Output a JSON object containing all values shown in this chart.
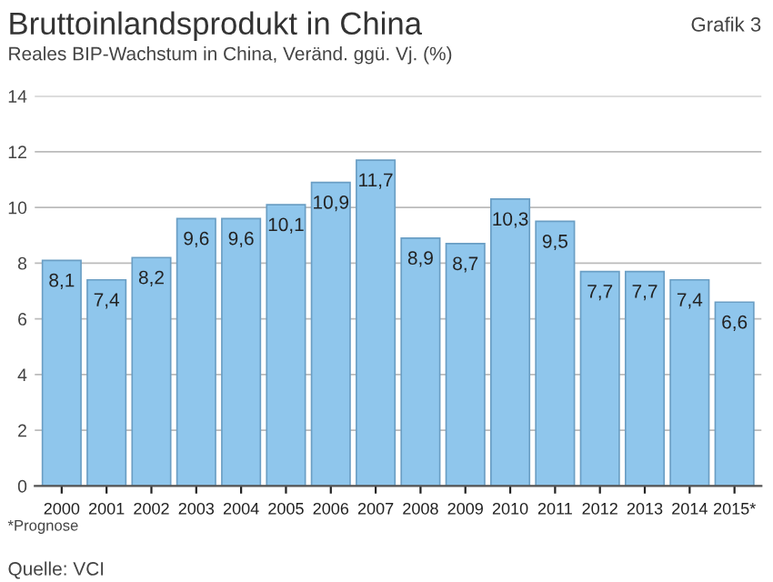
{
  "chart_data": {
    "type": "bar",
    "title": "Bruttoinlandsprodukt in China",
    "subtitle": "Reales BIP-Wachstum in China, Veränd. ggü. Vj. (%)",
    "annotations": [
      "Grafik 3",
      "*Prognose",
      "Quelle: VCI"
    ],
    "categories": [
      "2000",
      "2001",
      "2002",
      "2003",
      "2004",
      "2005",
      "2006",
      "2007",
      "2008",
      "2009",
      "2010",
      "2011",
      "2012",
      "2013",
      "2014",
      "2015*"
    ],
    "values": [
      8.1,
      7.4,
      8.2,
      9.6,
      9.6,
      10.1,
      10.9,
      11.7,
      8.9,
      8.7,
      10.3,
      9.5,
      7.7,
      7.7,
      7.4,
      6.6
    ],
    "value_labels": [
      "8,1",
      "7,4",
      "8,2",
      "9,6",
      "9,6",
      "10,1",
      "10,9",
      "11,7",
      "8,9",
      "8,7",
      "10,3",
      "9,5",
      "7,7",
      "7,7",
      "7,4",
      "6,6"
    ],
    "color": "#8fc6ec",
    "ylim": [
      0,
      14
    ],
    "yticks": [
      0,
      2,
      4,
      6,
      8,
      10,
      12,
      14
    ],
    "grid": "y",
    "legend": false
  }
}
